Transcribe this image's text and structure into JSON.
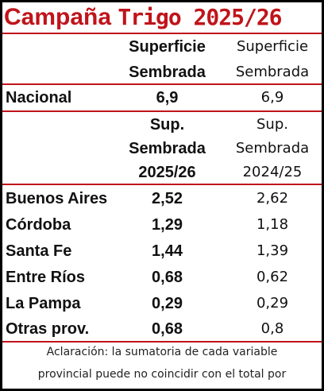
{
  "title": {
    "part1": "Campaña",
    "part2": "Trigo 2025/26"
  },
  "header1": {
    "col1": [
      "Superficie",
      "Sembrada"
    ],
    "col2": [
      "Superficie",
      "Sembrada"
    ]
  },
  "national": {
    "label": "Nacional",
    "v1": "6,9",
    "v2": "6,9"
  },
  "header2": {
    "col1": [
      "Sup.",
      "Sembrada",
      "2025/26"
    ],
    "col2": [
      "Sup.",
      "Sembrada",
      "2024/25"
    ]
  },
  "provinces": [
    {
      "label": "Buenos Aires",
      "v1": "2,52",
      "v2": "2,62"
    },
    {
      "label": "Córdoba",
      "v1": "1,29",
      "v2": "1,18"
    },
    {
      "label": "Santa Fe",
      "v1": "1,44",
      "v2": "1,39"
    },
    {
      "label": "Entre Ríos",
      "v1": "0,68",
      "v2": "0,62"
    },
    {
      "label": "La Pampa",
      "v1": "0,29",
      "v2": "0,29"
    },
    {
      "label": "Otras prov.",
      "v1": "0,68",
      "v2": "0,8"
    }
  ],
  "note": [
    "Aclaración: la sumatoria de cada variable",
    "provincial puede no coincidir con el total por"
  ],
  "colors": {
    "accent": "#c0141a",
    "border": "#000000"
  }
}
